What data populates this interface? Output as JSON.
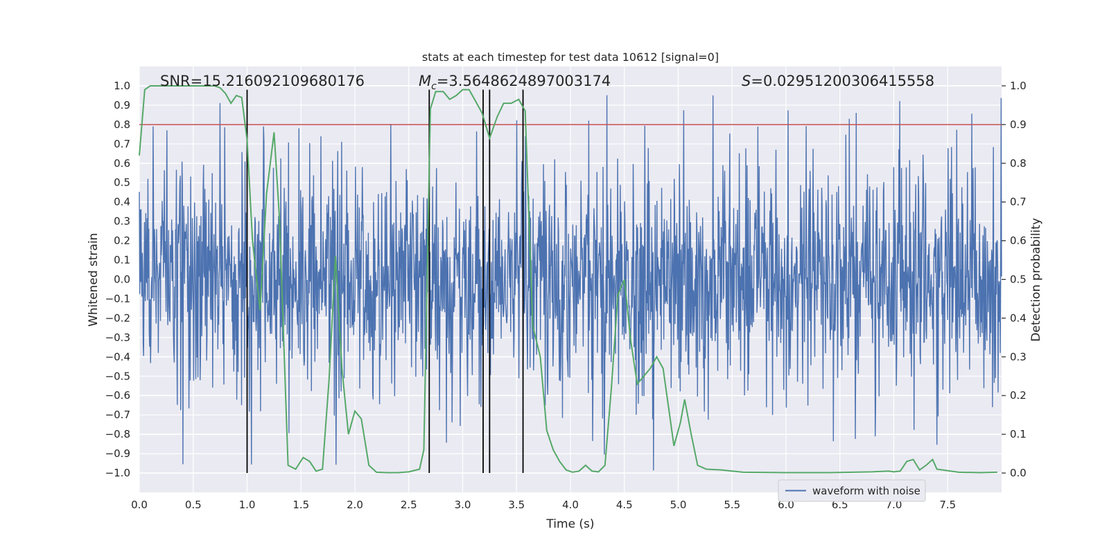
{
  "chart_data": {
    "type": "line",
    "title": "stats at each timestep for test data 10612 [signal=0]",
    "xlabel": "Time (s)",
    "ylabel": "Whitened strain",
    "y2label": "Detection probability",
    "xlim": [
      0.0,
      8.0
    ],
    "ylim": [
      -1.1,
      1.1
    ],
    "y2lim": [
      -0.05,
      1.05
    ],
    "x_ticks": [
      0.0,
      0.5,
      1.0,
      1.5,
      2.0,
      2.5,
      3.0,
      3.5,
      4.0,
      4.5,
      5.0,
      5.5,
      6.0,
      6.5,
      7.0,
      7.5
    ],
    "x_tick_labels": [
      "0.0",
      "0.5",
      "1.0",
      "1.5",
      "2.0",
      "2.5",
      "3.0",
      "3.5",
      "4.0",
      "4.5",
      "5.0",
      "5.5",
      "6.0",
      "6.5",
      "7.0",
      "7.5"
    ],
    "y_ticks": [
      1.0,
      0.9,
      0.8,
      0.7,
      0.6,
      0.5,
      0.4,
      0.3,
      0.2,
      0.1,
      0.0,
      -0.1,
      -0.2,
      -0.3,
      -0.4,
      -0.5,
      -0.6,
      -0.7,
      -0.8,
      -0.9,
      -1.0
    ],
    "y_tick_labels": [
      "1.0",
      "0.9",
      "0.8",
      "0.7",
      "0.6",
      "0.5",
      "0.4",
      "0.3",
      "0.2",
      "0.1",
      "0.0",
      "−0.1",
      "−0.2",
      "−0.3",
      "−0.4",
      "−0.5",
      "−0.6",
      "−0.7",
      "−0.8",
      "−0.9",
      "−1.0"
    ],
    "y2_ticks": [
      1.0,
      0.9,
      0.8,
      0.7,
      0.6,
      0.5,
      0.4,
      0.3,
      0.2,
      0.1,
      0.0
    ],
    "y2_tick_labels": [
      "1.0",
      "0.9",
      "0.8",
      "0.7",
      "0.6",
      "0.5",
      "0.4",
      "0.3",
      "0.2",
      "0.1",
      "0.0"
    ],
    "annotations": {
      "snr": "SNR=15.216092109680176",
      "mc_symbol": "M",
      "mc_sub": "c",
      "mc_value": "=3.5648624897003174",
      "s_symbol": "S",
      "s_value": "=0.02951200306415558"
    },
    "threshold": 0.9,
    "vlines": [
      1.0,
      2.69,
      3.19,
      3.25,
      3.56
    ],
    "vline_range": [
      -1.0,
      0.98
    ],
    "waveform": {
      "name": "waveform with noise",
      "approx_range": [
        -1.0,
        1.0
      ],
      "note": "dense noise trace, approximated procedurally"
    },
    "probability": {
      "name": "detection probability",
      "x": [
        0.0,
        0.05,
        0.1,
        0.2,
        0.3,
        0.4,
        0.5,
        0.6,
        0.7,
        0.75,
        0.8,
        0.85,
        0.9,
        0.95,
        1.0,
        1.05,
        1.12,
        1.18,
        1.25,
        1.3,
        1.38,
        1.45,
        1.52,
        1.58,
        1.64,
        1.7,
        1.76,
        1.82,
        1.88,
        1.94,
        2.0,
        2.06,
        2.13,
        2.2,
        2.3,
        2.4,
        2.5,
        2.6,
        2.64,
        2.7,
        2.75,
        2.82,
        2.88,
        2.94,
        3.0,
        3.06,
        3.12,
        3.18,
        3.25,
        3.32,
        3.38,
        3.45,
        3.52,
        3.58,
        3.65,
        3.72,
        3.78,
        3.84,
        3.9,
        3.96,
        4.02,
        4.08,
        4.14,
        4.2,
        4.26,
        4.32,
        4.38,
        4.44,
        4.5,
        4.56,
        4.62,
        4.68,
        4.74,
        4.8,
        4.86,
        4.92,
        4.96,
        5.02,
        5.06,
        5.12,
        5.18,
        5.26,
        5.4,
        5.6,
        6.0,
        6.4,
        6.8,
        6.95,
        7.0,
        7.06,
        7.12,
        7.18,
        7.24,
        7.3,
        7.36,
        7.4,
        7.6,
        7.8,
        7.96
      ],
      "y": [
        0.82,
        0.99,
        1.0,
        1.0,
        1.0,
        1.0,
        1.0,
        1.0,
        1.0,
        0.995,
        0.98,
        0.955,
        0.975,
        0.97,
        0.86,
        0.6,
        0.42,
        0.72,
        0.88,
        0.66,
        0.02,
        0.01,
        0.04,
        0.03,
        0.005,
        0.01,
        0.24,
        0.56,
        0.27,
        0.1,
        0.16,
        0.14,
        0.02,
        0.002,
        0.001,
        0.001,
        0.003,
        0.01,
        0.06,
        0.94,
        0.985,
        0.985,
        0.965,
        0.975,
        0.99,
        0.99,
        0.96,
        0.93,
        0.865,
        0.92,
        0.955,
        0.955,
        0.965,
        0.935,
        0.38,
        0.3,
        0.11,
        0.06,
        0.03,
        0.008,
        0.002,
        0.005,
        0.02,
        0.005,
        0.003,
        0.02,
        0.22,
        0.46,
        0.5,
        0.34,
        0.23,
        0.25,
        0.27,
        0.3,
        0.27,
        0.15,
        0.07,
        0.13,
        0.19,
        0.1,
        0.02,
        0.01,
        0.008,
        0.002,
        0.001,
        0.001,
        0.003,
        0.005,
        0.003,
        0.005,
        0.03,
        0.035,
        0.008,
        0.02,
        0.035,
        0.01,
        0.002,
        0.001,
        0.002
      ]
    },
    "legend": {
      "label": "waveform with noise",
      "placement": "lower-right"
    },
    "colors": {
      "background": "#eaeaf2",
      "grid": "#ffffff",
      "waveform": "#4c72b0",
      "probability": "#55a868",
      "threshold": "#c44e52",
      "vline": "#000000"
    }
  }
}
